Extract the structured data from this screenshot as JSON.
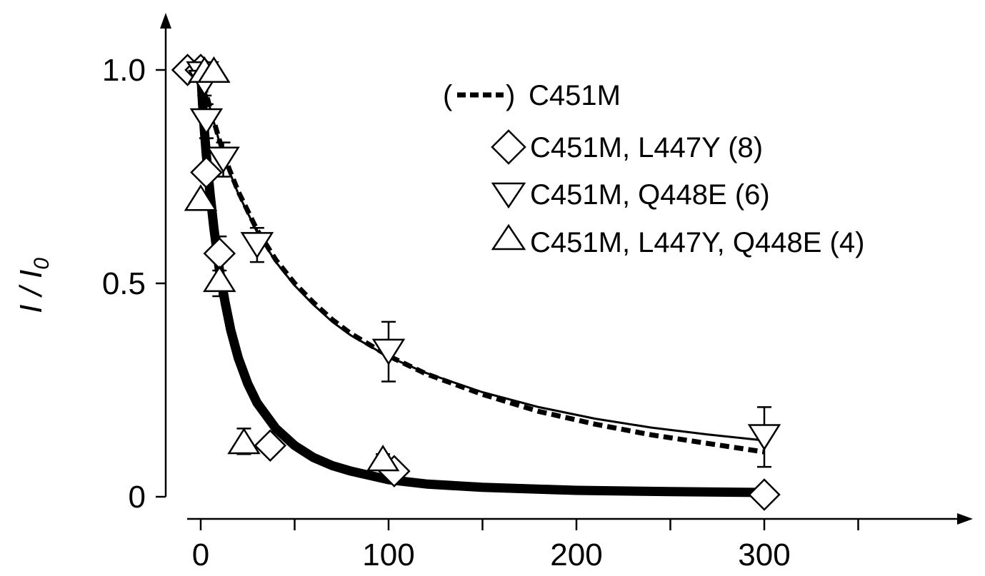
{
  "chart_data": {
    "type": "line",
    "title": "",
    "xlabel": "",
    "ylabel": "I / I",
    "ylabel_subscript": "0",
    "xlim": [
      -10,
      410
    ],
    "ylim": [
      0,
      1.1
    ],
    "x_ticks": [
      0,
      100,
      200,
      300
    ],
    "x_minor_ticks": [
      50,
      150,
      250,
      350
    ],
    "y_ticks": [
      0,
      0.5,
      1.0
    ],
    "y_tick_labels": [
      "0",
      "0.5",
      "1.0"
    ],
    "grid": false,
    "legend_position": "top-right",
    "legend": {
      "line_entry": {
        "prefix": "(",
        "suffix": ")",
        "label": "C451M"
      },
      "entries": [
        {
          "marker": "diamond",
          "label": "C451M, L447Y (8)"
        },
        {
          "marker": "triangle-down",
          "label": "C451M, Q448E (6)"
        },
        {
          "marker": "triangle-up",
          "label": "C451M, L447Y, Q448E (4)"
        }
      ]
    },
    "fits": [
      {
        "name": "C451M",
        "style": "dashed",
        "width": 7,
        "x": [
          0,
          2,
          5,
          10,
          15,
          20,
          30,
          40,
          50,
          60,
          70,
          80,
          100,
          120,
          150,
          180,
          210,
          240,
          270,
          300
        ],
        "y": [
          1.0,
          0.96,
          0.91,
          0.835,
          0.77,
          0.715,
          0.625,
          0.555,
          0.5,
          0.455,
          0.415,
          0.382,
          0.33,
          0.288,
          0.24,
          0.2,
          0.17,
          0.145,
          0.125,
          0.105
        ]
      },
      {
        "name": "C451M, Q448E",
        "style": "solid",
        "width": 3,
        "x": [
          0,
          2,
          5,
          10,
          15,
          20,
          30,
          40,
          50,
          60,
          70,
          80,
          100,
          120,
          150,
          180,
          210,
          240,
          270,
          300
        ],
        "y": [
          1.0,
          0.96,
          0.91,
          0.83,
          0.765,
          0.71,
          0.62,
          0.55,
          0.495,
          0.45,
          0.41,
          0.378,
          0.328,
          0.29,
          0.245,
          0.21,
          0.183,
          0.162,
          0.146,
          0.132
        ]
      },
      {
        "name": "C451M, L447Y",
        "style": "solid",
        "width": 13,
        "x": [
          0,
          1,
          2,
          3,
          5,
          7,
          10,
          13,
          16,
          20,
          25,
          30,
          40,
          50,
          60,
          70,
          80,
          100,
          120,
          150,
          200,
          250,
          300
        ],
        "y": [
          1.0,
          0.92,
          0.855,
          0.8,
          0.71,
          0.63,
          0.53,
          0.455,
          0.39,
          0.325,
          0.265,
          0.22,
          0.16,
          0.12,
          0.092,
          0.073,
          0.06,
          0.04,
          0.03,
          0.022,
          0.015,
          0.012,
          0.01
        ]
      }
    ],
    "series": [
      {
        "name": "C451M, L447Y (8)",
        "marker": "diamond",
        "x": [
          -7,
          0,
          3,
          10,
          37,
          103,
          300
        ],
        "y": [
          1.0,
          1.0,
          0.76,
          0.57,
          0.12,
          0.06,
          0.005
        ],
        "err": [
          0,
          0,
          0,
          0.04,
          0.02,
          0.01,
          0
        ]
      },
      {
        "name": "C451M, Q448E (6)",
        "marker": "triangle-down",
        "x": [
          1,
          2,
          3,
          12,
          30,
          100,
          300
        ],
        "y": [
          0.99,
          0.97,
          0.88,
          0.79,
          0.59,
          0.34,
          0.14
        ],
        "err": [
          0,
          0.03,
          0.04,
          0.04,
          0.04,
          0.07,
          0.07
        ]
      },
      {
        "name": "C451M, L447Y, Q448E (4)",
        "marker": "triangle-up",
        "x": [
          2,
          7,
          0,
          10,
          23,
          97
        ],
        "y": [
          1.0,
          1.0,
          0.7,
          0.51,
          0.13,
          0.09
        ],
        "err": [
          0,
          0,
          0,
          0.04,
          0.03,
          0.01
        ]
      }
    ],
    "colors": {
      "ink": "#000000",
      "marker_fill": "#ffffff"
    }
  }
}
